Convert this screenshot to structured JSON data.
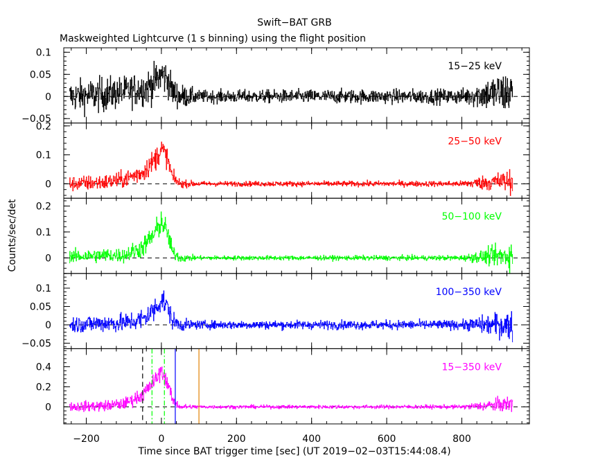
{
  "chart_data": {
    "type": "line",
    "title": "Swift−BAT GRB",
    "subtitle": "Maskweighted Lightcurve (1 s binning) using the flight position",
    "xlabel": "Time since BAT trigger time [sec] (UT 2019−02−03T15:44:08.4)",
    "ylabel": "Counts/sec/det",
    "xlim": [
      -260,
      980
    ],
    "x_ticks": [
      -200,
      0,
      200,
      400,
      600,
      800
    ],
    "x_tick_labels": [
      "−200",
      "0",
      "200",
      "400",
      "600",
      "800"
    ],
    "panels": [
      {
        "label": "15−25 keV",
        "color": "#000000",
        "ylim": [
          -0.06,
          0.11
        ],
        "y_ticks": [
          -0.05,
          0,
          0.05,
          0.1
        ],
        "y_tick_labels": [
          "−0.05",
          "0",
          "0.05",
          "0.1"
        ],
        "profile": {
          "x": [
            -245,
            -150,
            -100,
            -40,
            -20,
            0,
            15,
            30,
            50,
            100,
            400,
            800,
            860,
            935
          ],
          "y": [
            0,
            0.005,
            0.01,
            0.02,
            0.03,
            0.05,
            0.04,
            0.01,
            0,
            0,
            0,
            0,
            0.005,
            0.01
          ]
        },
        "noise": {
          "x": [
            -245,
            -150,
            -100,
            0,
            50,
            100,
            800,
            860,
            935
          ],
          "y": [
            0.025,
            0.028,
            0.025,
            0.03,
            0.02,
            0.01,
            0.012,
            0.025,
            0.04
          ]
        }
      },
      {
        "label": "25−50 keV",
        "color": "#ff0000",
        "ylim": [
          -0.05,
          0.21
        ],
        "y_ticks": [
          0,
          0.1,
          0.2
        ],
        "y_tick_labels": [
          "0",
          "0.1",
          "0.2"
        ],
        "profile": {
          "x": [
            -245,
            -150,
            -100,
            -50,
            -20,
            0,
            15,
            30,
            50,
            100,
            800,
            935
          ],
          "y": [
            0,
            0.005,
            0.015,
            0.04,
            0.08,
            0.12,
            0.09,
            0.02,
            0,
            0,
            0,
            0.01
          ]
        },
        "noise": {
          "x": [
            -245,
            -100,
            0,
            50,
            100,
            800,
            860,
            935
          ],
          "y": [
            0.018,
            0.02,
            0.03,
            0.01,
            0.006,
            0.007,
            0.018,
            0.03
          ]
        }
      },
      {
        "label": "50−100 keV",
        "color": "#00ff00",
        "ylim": [
          -0.06,
          0.23
        ],
        "y_ticks": [
          0,
          0.1,
          0.2
        ],
        "y_tick_labels": [
          "0",
          "0.1",
          "0.2"
        ],
        "profile": {
          "x": [
            -245,
            -150,
            -100,
            -50,
            -20,
            0,
            15,
            30,
            50,
            100,
            800,
            935
          ],
          "y": [
            0.005,
            0.01,
            0.01,
            0.04,
            0.09,
            0.14,
            0.1,
            0.02,
            0,
            0,
            0,
            0.01
          ]
        },
        "noise": {
          "x": [
            -245,
            -100,
            0,
            50,
            100,
            800,
            860,
            935
          ],
          "y": [
            0.018,
            0.02,
            0.035,
            0.012,
            0.006,
            0.007,
            0.02,
            0.04
          ]
        }
      },
      {
        "label": "100−350 keV",
        "color": "#0000ff",
        "ylim": [
          -0.065,
          0.14
        ],
        "y_ticks": [
          -0.05,
          0,
          0.05,
          0.1
        ],
        "y_tick_labels": [
          "−0.05",
          "0",
          "0.05",
          "0.1"
        ],
        "profile": {
          "x": [
            -245,
            -150,
            -100,
            -50,
            -20,
            0,
            15,
            30,
            50,
            100,
            800,
            935
          ],
          "y": [
            0,
            0.005,
            0.005,
            0.015,
            0.04,
            0.07,
            0.05,
            0.01,
            0,
            0,
            0,
            0
          ]
        },
        "noise": {
          "x": [
            -245,
            -100,
            0,
            50,
            100,
            800,
            860,
            935
          ],
          "y": [
            0.016,
            0.018,
            0.025,
            0.012,
            0.008,
            0.009,
            0.018,
            0.03
          ]
        }
      },
      {
        "label": "15−350 keV",
        "color": "#ff00ff",
        "ylim": [
          -0.17,
          0.58
        ],
        "y_ticks": [
          0,
          0.2,
          0.4
        ],
        "y_tick_labels": [
          "0",
          "0.2",
          "0.4"
        ],
        "profile": {
          "x": [
            -245,
            -150,
            -100,
            -50,
            -20,
            0,
            15,
            30,
            50,
            100,
            800,
            860,
            935
          ],
          "y": [
            0,
            0.01,
            0.03,
            0.12,
            0.25,
            0.36,
            0.25,
            0.06,
            0,
            0,
            0,
            0.01,
            0.03
          ]
        },
        "noise": {
          "x": [
            -245,
            -100,
            0,
            50,
            100,
            800,
            860,
            935
          ],
          "y": [
            0.035,
            0.04,
            0.06,
            0.02,
            0.012,
            0.014,
            0.035,
            0.06
          ]
        },
        "vlines": [
          {
            "x": -50,
            "color": "#000000",
            "dash": "dashed"
          },
          {
            "x": -25,
            "color": "#00ff00",
            "dash": "dashdot"
          },
          {
            "x": 8,
            "color": "#00ff00",
            "dash": "dashdot"
          },
          {
            "x": 37,
            "color": "#0000ff",
            "dash": "solid"
          },
          {
            "x": 100,
            "color": "#e08000",
            "dash": "solid"
          }
        ]
      }
    ],
    "data_extent": [
      -245,
      935
    ],
    "zero_line": "dashed",
    "grid": false
  }
}
